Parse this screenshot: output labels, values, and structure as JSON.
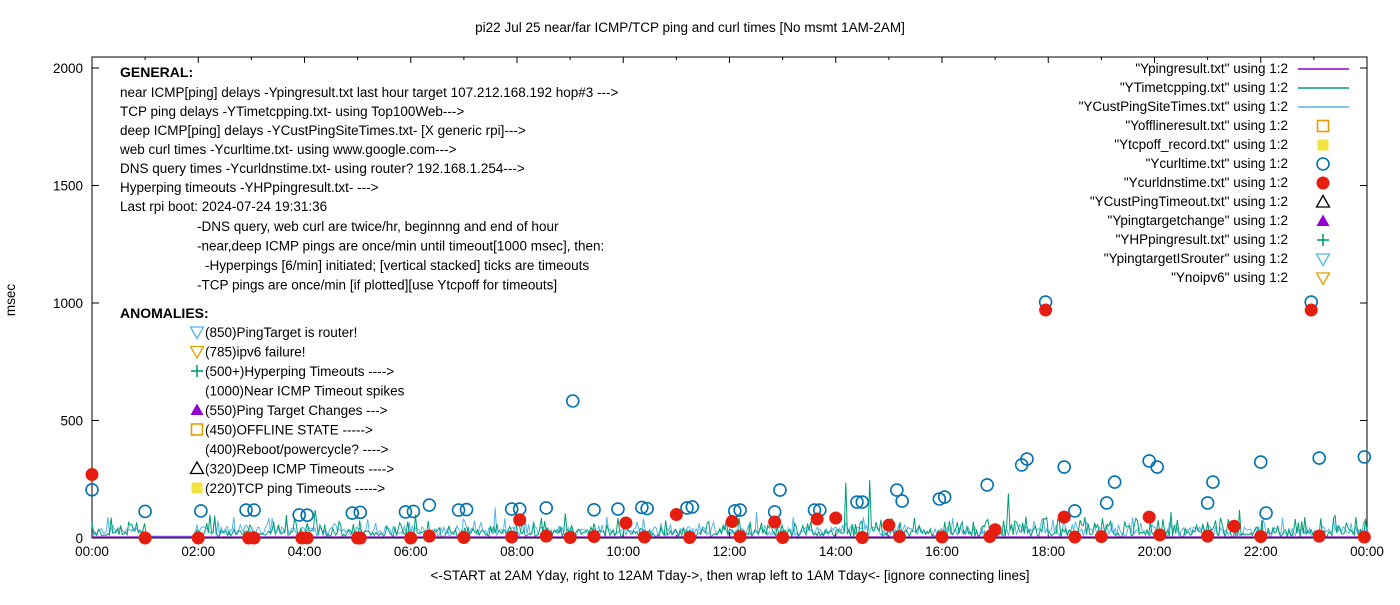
{
  "chart_data": {
    "type": "line",
    "title": "pi22 Jul 25  near/far ICMP/TCP ping and curl times [No msmt 1AM-2AM]",
    "ylabel": "msec",
    "xlabel": "<-START at 2AM Yday, right to 12AM Tday->, then wrap left to 1AM Tday<- [ignore connecting lines]",
    "ylim": [
      0,
      2000
    ],
    "xlim_hours": [
      0,
      24
    ],
    "grid": false,
    "y_ticks": [
      0,
      500,
      1000,
      1500,
      2000
    ],
    "x_ticks": [
      {
        "h": 0,
        "label": "00:00"
      },
      {
        "h": 2,
        "label": "02:00"
      },
      {
        "h": 4,
        "label": "04:00"
      },
      {
        "h": 6,
        "label": "06:00"
      },
      {
        "h": 8,
        "label": "08:00"
      },
      {
        "h": 10,
        "label": "10:00"
      },
      {
        "h": 12,
        "label": "12:00"
      },
      {
        "h": 14,
        "label": "14:00"
      },
      {
        "h": 16,
        "label": "16:00"
      },
      {
        "h": 18,
        "label": "18:00"
      },
      {
        "h": 20,
        "label": "20:00"
      },
      {
        "h": 22,
        "label": "22:00"
      },
      {
        "h": 24,
        "label": "00:00"
      }
    ],
    "legend_position": "top-right-inside",
    "legend": [
      {
        "label": "\"Ypingresult.txt\" using 1:2",
        "marker": "line",
        "color": "#9400d3"
      },
      {
        "label": "\"YTimetcpping.txt\" using 1:2",
        "marker": "line",
        "color": "#009e73"
      },
      {
        "label": "\"YCustPingSiteTimes.txt\" using 1:2",
        "marker": "line",
        "color": "#56b4e9"
      },
      {
        "label": "\"Yofflineresult.txt\" using 1:2",
        "marker": "open-square",
        "color": "#e69f00"
      },
      {
        "label": "\"Ytcpoff_record.txt\" using 1:2",
        "marker": "filled-square",
        "color": "#f0e442"
      },
      {
        "label": "\"Ycurltime.txt\" using 1:2",
        "marker": "open-circle",
        "color": "#0072b2"
      },
      {
        "label": "\"Ycurldnstime.txt\" using 1:2",
        "marker": "filled-circle",
        "color": "#e51e10"
      },
      {
        "label": "\"YCustPingTimeout.txt\" using 1:2",
        "marker": "open-triangle-up",
        "color": "#000000"
      },
      {
        "label": "\"Ypingtargetchange\" using 1:2",
        "marker": "filled-triangle-up",
        "color": "#9400d3"
      },
      {
        "label": "\"YHPpingresult.txt\" using 1:2",
        "marker": "plus",
        "color": "#009e73"
      },
      {
        "label": "\"YpingtargetISrouter\" using 1:2",
        "marker": "open-triangle-down",
        "color": "#56b4e9"
      },
      {
        "label": "\"Ynoipv6\" using 1:2",
        "marker": "open-triangle-down",
        "color": "#e69f00"
      }
    ],
    "annotations": {
      "general": {
        "heading": "GENERAL:",
        "lines": [
          "near ICMP[ping] delays -Ypingresult.txt last hour target 107.212.168.192 hop#3 --->",
          "TCP ping delays -YTimetcpping.txt- using Top100Web--->",
          "deep ICMP[ping] delays -YCustPingSiteTimes.txt- [X generic rpi]--->",
          "web curl times -Ycurltime.txt- using www.google.com--->",
          "DNS query times -Ycurldnstime.txt- using router? 192.168.1.254--->",
          "Hyperping timeouts -YHPpingresult.txt- --->",
          "Last rpi boot: 2024-07-24 19:31:36"
        ],
        "sub_lines": [
          "-DNS query, web curl are twice/hr, beginnng and end of hour",
          "-near,deep ICMP pings are once/min until timeout[1000 msec], then:",
          " -Hyperpings [6/min] initiated; [vertical stacked] ticks are timeouts",
          "-TCP pings are once/min [if plotted][use Ytcpoff for timeouts]"
        ]
      },
      "anomalies": {
        "heading": "ANOMALIES:",
        "items": [
          {
            "marker": "open-triangle-down",
            "color": "#56b4e9",
            "text": "(850)PingTarget is router!"
          },
          {
            "marker": "open-triangle-down",
            "color": "#e69f00",
            "text": "(785)ipv6 failure!"
          },
          {
            "marker": "plus",
            "color": "#009e73",
            "text": "(500+)Hyperping Timeouts ---->"
          },
          {
            "marker": "none",
            "color": "",
            "text": "(1000)Near ICMP Timeout spikes"
          },
          {
            "marker": "filled-triangle-up",
            "color": "#9400d3",
            "text": "(550)Ping Target Changes --->"
          },
          {
            "marker": "open-square",
            "color": "#e69f00",
            "text": "(450)OFFLINE STATE ----->"
          },
          {
            "marker": "none",
            "color": "",
            "text": "(400)Reboot/powercycle? ---->"
          },
          {
            "marker": "open-triangle-up",
            "color": "#000000",
            "text": "(320)Deep ICMP Timeouts ---->"
          },
          {
            "marker": "filled-square",
            "color": "#f0e442",
            "text": "(220)TCP ping Timeouts ----->"
          }
        ]
      }
    },
    "series": {
      "near_icmp_line": {
        "name": "Ypingresult.txt (near ICMP ping delays)",
        "color": "#9400d3",
        "style": "flat-line",
        "flat_value_msec": 4
      },
      "tcp_ping_line": {
        "name": "YTimetcpping.txt (TCP ping delays)",
        "color": "#009e73",
        "style": "noisy-line",
        "seed": 7,
        "base": 3,
        "band": 32,
        "spike_chance": 0.3,
        "spike_extra": 65,
        "no_msmt_gap_hours": [
          1.05,
          1.93
        ],
        "big_spikes": [
          [
            2.3,
            95
          ],
          [
            4.2,
            120
          ],
          [
            6.1,
            100
          ],
          [
            8.9,
            105
          ],
          [
            14.2,
            235
          ],
          [
            14.65,
            247
          ],
          [
            17.25,
            190
          ],
          [
            20.3,
            110
          ],
          [
            21.6,
            120
          ],
          [
            23.4,
            95
          ]
        ]
      },
      "deep_icmp_line": {
        "name": "YCustPingSiteTimes.txt (deep ICMP ping delays)",
        "color": "#56b4e9",
        "style": "noisy-line",
        "seed": 3,
        "base": 8,
        "band": 40,
        "spike_chance": 0.22,
        "spike_extra": 45,
        "no_msmt_gap_hours": [
          1.05,
          1.93
        ],
        "big_spikes": [
          [
            0.3,
            90
          ],
          [
            3.4,
            85
          ],
          [
            5.2,
            80
          ],
          [
            7.6,
            130
          ],
          [
            9.7,
            90
          ],
          [
            12.5,
            110
          ],
          [
            16.2,
            85
          ],
          [
            19.6,
            90
          ],
          [
            22.4,
            85
          ]
        ]
      },
      "curl_points": {
        "name": "Ycurltime.txt (web curl times)",
        "color": "#0072b2",
        "marker": "open-circle",
        "points_hour_msec": [
          [
            0.0,
            205
          ],
          [
            1.0,
            113
          ],
          [
            2.05,
            115
          ],
          [
            2.9,
            119
          ],
          [
            3.05,
            119
          ],
          [
            3.9,
            98
          ],
          [
            4.05,
            97
          ],
          [
            4.9,
            106
          ],
          [
            5.05,
            109
          ],
          [
            5.9,
            111
          ],
          [
            6.05,
            113
          ],
          [
            6.35,
            140
          ],
          [
            6.9,
            119
          ],
          [
            7.05,
            121
          ],
          [
            7.9,
            123
          ],
          [
            8.05,
            123
          ],
          [
            8.55,
            128
          ],
          [
            9.05,
            583
          ],
          [
            9.45,
            120
          ],
          [
            9.9,
            123
          ],
          [
            10.35,
            130
          ],
          [
            10.45,
            125
          ],
          [
            11.2,
            128
          ],
          [
            11.3,
            132
          ],
          [
            12.1,
            115
          ],
          [
            12.2,
            119
          ],
          [
            12.85,
            111
          ],
          [
            12.95,
            204
          ],
          [
            13.6,
            119
          ],
          [
            13.7,
            119
          ],
          [
            14.4,
            153
          ],
          [
            14.5,
            153
          ],
          [
            15.15,
            204
          ],
          [
            15.25,
            157
          ],
          [
            15.95,
            166
          ],
          [
            16.05,
            174
          ],
          [
            16.85,
            226
          ],
          [
            17.5,
            311
          ],
          [
            17.6,
            336
          ],
          [
            17.95,
            1004
          ],
          [
            18.3,
            302
          ],
          [
            18.5,
            115
          ],
          [
            19.1,
            149
          ],
          [
            19.25,
            238
          ],
          [
            19.9,
            328
          ],
          [
            20.05,
            302
          ],
          [
            21.0,
            149
          ],
          [
            21.1,
            238
          ],
          [
            22.0,
            323
          ],
          [
            22.1,
            106
          ],
          [
            22.95,
            1004
          ],
          [
            23.1,
            340
          ],
          [
            23.95,
            345
          ]
        ]
      },
      "dns_points": {
        "name": "Ycurldnstime.txt (DNS query times)",
        "color": "#e51e10",
        "marker": "filled-circle",
        "points_hour_msec": [
          [
            0.0,
            270
          ],
          [
            1.0,
            0
          ],
          [
            2.0,
            0
          ],
          [
            2.95,
            0
          ],
          [
            3.05,
            0
          ],
          [
            3.95,
            0
          ],
          [
            4.05,
            0
          ],
          [
            5.0,
            0
          ],
          [
            5.05,
            0
          ],
          [
            6.0,
            0
          ],
          [
            6.35,
            8
          ],
          [
            7.0,
            2
          ],
          [
            7.9,
            4
          ],
          [
            8.05,
            77
          ],
          [
            8.55,
            8
          ],
          [
            9.0,
            2
          ],
          [
            9.45,
            6
          ],
          [
            10.05,
            64
          ],
          [
            10.4,
            4
          ],
          [
            11.0,
            100
          ],
          [
            11.25,
            2
          ],
          [
            12.05,
            70
          ],
          [
            12.2,
            6
          ],
          [
            12.85,
            68
          ],
          [
            13.0,
            2
          ],
          [
            13.65,
            81
          ],
          [
            14.0,
            85
          ],
          [
            14.5,
            2
          ],
          [
            15.0,
            55
          ],
          [
            15.2,
            6
          ],
          [
            16.0,
            4
          ],
          [
            16.9,
            6
          ],
          [
            17.0,
            35
          ],
          [
            17.95,
            970
          ],
          [
            18.3,
            89
          ],
          [
            18.5,
            4
          ],
          [
            19.0,
            6
          ],
          [
            19.9,
            89
          ],
          [
            20.1,
            13
          ],
          [
            21.0,
            8
          ],
          [
            21.5,
            50
          ],
          [
            22.0,
            6
          ],
          [
            22.95,
            970
          ],
          [
            23.1,
            8
          ],
          [
            23.95,
            4
          ]
        ]
      }
    }
  }
}
